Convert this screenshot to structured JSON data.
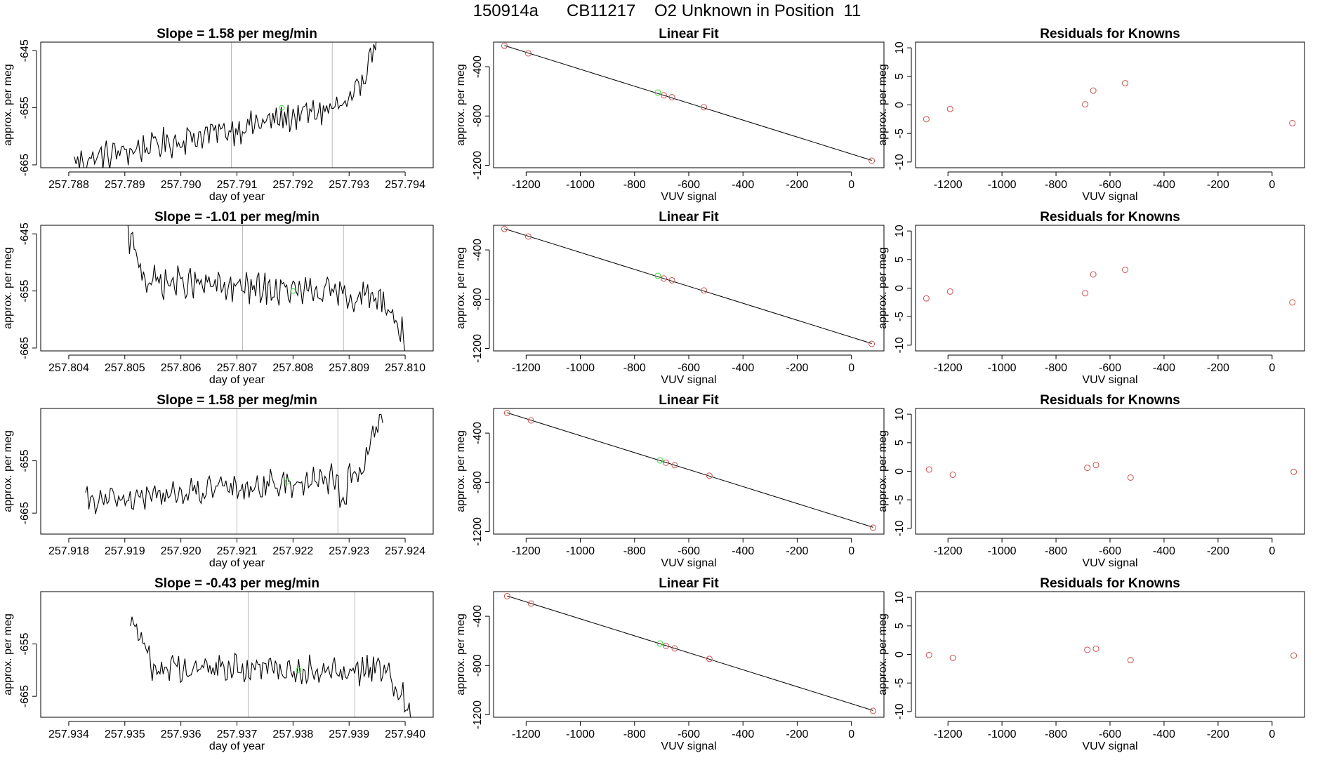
{
  "page": {
    "title": "150914a      CB11217    O2 Unknown in Position  11"
  },
  "colors": {
    "line": "#000000",
    "guide": "#bbbbbb",
    "known_point": "#cd4f4f",
    "unknown_point": "#3ddc3d",
    "frame": "#000000"
  },
  "chart_data": [
    {
      "type": "line",
      "row": 0,
      "panel": "time-series",
      "title": "Slope =  1.58  per meg/min",
      "xlabel": "day of year",
      "ylabel": "approx. per meg",
      "xlim": [
        257.7875,
        257.7945
      ],
      "ylim": [
        -665.5,
        -643.5
      ],
      "xticks": [
        "257.788",
        "257.789",
        "257.790",
        "257.791",
        "257.792",
        "257.793",
        "257.794"
      ],
      "yticks": [
        "-645",
        "-655",
        "-665"
      ],
      "guides": [
        257.7909,
        257.7927
      ],
      "trend": {
        "start": 257.7881,
        "end": 257.7935,
        "from": -664.5,
        "to": -653.5,
        "noise": 2.2,
        "tail": 11
      },
      "marker": [
        257.7918,
        -655.0
      ]
    },
    {
      "type": "scatter",
      "row": 0,
      "panel": "linear-fit",
      "title": "Linear Fit",
      "xlabel": "VUV signal",
      "ylabel": "approx. per meg",
      "xlim": [
        -1320,
        120
      ],
      "ylim": [
        -1220,
        -200
      ],
      "xticks": [
        "-1200",
        "-1000",
        "-800",
        "-600",
        "-400",
        "-200",
        "0"
      ],
      "yticks": [
        "-400",
        "-800",
        "-1200"
      ],
      "fit": [
        [
          -1280,
          -228
        ],
        [
          75,
          -1160
        ]
      ],
      "knowns": [
        [
          -1280,
          -230
        ],
        [
          -1192,
          -291
        ],
        [
          -692,
          -632
        ],
        [
          -662,
          -647
        ],
        [
          -544,
          -729
        ],
        [
          75,
          -1163
        ]
      ],
      "unknown": [
        -714,
        -610
      ]
    },
    {
      "type": "scatter",
      "row": 0,
      "panel": "residuals",
      "title": "Residuals for Knowns",
      "xlabel": "VUV signal",
      "ylabel": "approx. per meg",
      "xlim": [
        -1320,
        120
      ],
      "ylim": [
        -11,
        11
      ],
      "xticks": [
        "-1200",
        "-1000",
        "-800",
        "-600",
        "-400",
        "-200",
        "0"
      ],
      "yticks": [
        "10",
        "5",
        "0",
        "-5",
        "-10"
      ],
      "points": [
        [
          -1280,
          -2.5
        ],
        [
          -1192,
          -0.7
        ],
        [
          -692,
          0.1
        ],
        [
          -662,
          2.5
        ],
        [
          -544,
          3.8
        ],
        [
          75,
          -3.2
        ]
      ]
    },
    {
      "type": "line",
      "row": 1,
      "panel": "time-series",
      "title": "Slope =  -1.01  per meg/min",
      "xlabel": "day of year",
      "ylabel": "approx. per meg",
      "xlim": [
        257.8035,
        257.8105
      ],
      "ylim": [
        -665.5,
        -643.5
      ],
      "xticks": [
        "257.804",
        "257.805",
        "257.806",
        "257.807",
        "257.808",
        "257.809",
        "257.810"
      ],
      "yticks": [
        "-645",
        "-655",
        "-665"
      ],
      "guides": [
        257.8071,
        257.8089
      ],
      "trend": {
        "start": 257.805,
        "end": 257.81,
        "from": -653.0,
        "to": -656.5,
        "noise": 2.3,
        "head": 9,
        "tail": -7
      },
      "marker": [
        257.808,
        -655.0
      ]
    },
    {
      "type": "scatter",
      "row": 1,
      "panel": "linear-fit",
      "title": "Linear Fit",
      "xlabel": "VUV signal",
      "ylabel": "approx. per meg",
      "xlim": [
        -1320,
        120
      ],
      "ylim": [
        -1220,
        -200
      ],
      "xticks": [
        "-1200",
        "-1000",
        "-800",
        "-600",
        "-400",
        "-200",
        "0"
      ],
      "yticks": [
        "-400",
        "-800",
        "-1200"
      ],
      "fit": [
        [
          -1280,
          -228
        ],
        [
          75,
          -1160
        ]
      ],
      "knowns": [
        [
          -1280,
          -230
        ],
        [
          -1192,
          -291
        ],
        [
          -692,
          -632
        ],
        [
          -662,
          -647
        ],
        [
          -544,
          -729
        ],
        [
          75,
          -1163
        ]
      ],
      "unknown": [
        -714,
        -610
      ]
    },
    {
      "type": "scatter",
      "row": 1,
      "panel": "residuals",
      "title": "Residuals for Knowns",
      "xlabel": "VUV signal",
      "ylabel": "approx. per meg",
      "xlim": [
        -1320,
        120
      ],
      "ylim": [
        -11,
        11
      ],
      "xticks": [
        "-1200",
        "-1000",
        "-800",
        "-600",
        "-400",
        "-200",
        "0"
      ],
      "yticks": [
        "10",
        "5",
        "0",
        "-5",
        "-10"
      ],
      "points": [
        [
          -1280,
          -1.8
        ],
        [
          -1192,
          -0.6
        ],
        [
          -692,
          -0.9
        ],
        [
          -662,
          2.4
        ],
        [
          -544,
          3.2
        ],
        [
          75,
          -2.5
        ]
      ]
    },
    {
      "type": "line",
      "row": 2,
      "panel": "time-series",
      "title": "Slope =  1.58  per meg/min",
      "xlabel": "day of year",
      "ylabel": "approx. per meg",
      "xlim": [
        257.9175,
        257.9245
      ],
      "ylim": [
        -669,
        -645
      ],
      "xticks": [
        "257.918",
        "257.919",
        "257.920",
        "257.921",
        "257.922",
        "257.923",
        "257.924"
      ],
      "yticks": [
        "-655",
        "-665"
      ],
      "guides": [
        257.921,
        257.9228
      ],
      "trend": {
        "start": 257.9183,
        "end": 257.9236,
        "from": -663.0,
        "to": -657.5,
        "noise": 2.2,
        "tail": 12,
        "dip": 257.9229
      },
      "marker": [
        257.9219,
        -659.0
      ]
    },
    {
      "type": "scatter",
      "row": 2,
      "panel": "linear-fit",
      "title": "Linear Fit",
      "xlabel": "VUV signal",
      "ylabel": "approx. per meg",
      "xlim": [
        -1320,
        120
      ],
      "ylim": [
        -1220,
        -200
      ],
      "xticks": [
        "-1200",
        "-1000",
        "-800",
        "-600",
        "-400",
        "-200",
        "0"
      ],
      "yticks": [
        "-400",
        "-800",
        "-1200"
      ],
      "fit": [
        [
          -1270,
          -235
        ],
        [
          80,
          -1165
        ]
      ],
      "knowns": [
        [
          -1270,
          -237
        ],
        [
          -1182,
          -297
        ],
        [
          -684,
          -640
        ],
        [
          -652,
          -661
        ],
        [
          -524,
          -746
        ],
        [
          80,
          -1168
        ]
      ],
      "unknown": [
        -706,
        -622
      ]
    },
    {
      "type": "scatter",
      "row": 2,
      "panel": "residuals",
      "title": "Residuals for Knowns",
      "xlabel": "VUV signal",
      "ylabel": "approx. per meg",
      "xlim": [
        -1320,
        120
      ],
      "ylim": [
        -11,
        11
      ],
      "xticks": [
        "-1200",
        "-1000",
        "-800",
        "-600",
        "-400",
        "-200",
        "0"
      ],
      "yticks": [
        "10",
        "5",
        "0",
        "-5",
        "-10"
      ],
      "points": [
        [
          -1270,
          0.3
        ],
        [
          -1182,
          -0.6
        ],
        [
          -684,
          0.6
        ],
        [
          -652,
          1.1
        ],
        [
          -524,
          -1.1
        ],
        [
          80,
          -0.1
        ]
      ]
    },
    {
      "type": "line",
      "row": 3,
      "panel": "time-series",
      "title": "Slope =  -0.43  per meg/min",
      "xlabel": "day of year",
      "ylabel": "approx. per meg",
      "xlim": [
        257.9335,
        257.9405
      ],
      "ylim": [
        -669,
        -645
      ],
      "xticks": [
        "257.934",
        "257.935",
        "257.936",
        "257.937",
        "257.938",
        "257.939",
        "257.940"
      ],
      "yticks": [
        "-655",
        "-665"
      ],
      "guides": [
        257.9372,
        257.9391
      ],
      "trend": {
        "start": 257.9351,
        "end": 257.9401,
        "from": -659.5,
        "to": -660.0,
        "noise": 2.3,
        "head": 10,
        "tail": -8
      },
      "marker": [
        257.9381,
        -660.0
      ]
    },
    {
      "type": "scatter",
      "row": 3,
      "panel": "linear-fit",
      "title": "Linear Fit",
      "xlabel": "VUV signal",
      "ylabel": "approx. per meg",
      "xlim": [
        -1320,
        120
      ],
      "ylim": [
        -1220,
        -200
      ],
      "xticks": [
        "-1200",
        "-1000",
        "-800",
        "-600",
        "-400",
        "-200",
        "0"
      ],
      "yticks": [
        "-400",
        "-800",
        "-1200"
      ],
      "fit": [
        [
          -1270,
          -235
        ],
        [
          80,
          -1165
        ]
      ],
      "knowns": [
        [
          -1270,
          -237
        ],
        [
          -1182,
          -297
        ],
        [
          -684,
          -640
        ],
        [
          -652,
          -661
        ],
        [
          -524,
          -746
        ],
        [
          80,
          -1168
        ]
      ],
      "unknown": [
        -706,
        -622
      ]
    },
    {
      "type": "scatter",
      "row": 3,
      "panel": "residuals",
      "title": "Residuals for Knowns",
      "xlabel": "VUV signal",
      "ylabel": "approx. per meg",
      "xlim": [
        -1320,
        120
      ],
      "ylim": [
        -11,
        11
      ],
      "xticks": [
        "-1200",
        "-1000",
        "-800",
        "-600",
        "-400",
        "-200",
        "0"
      ],
      "yticks": [
        "10",
        "5",
        "0",
        "-5",
        "-10"
      ],
      "points": [
        [
          -1270,
          -0.1
        ],
        [
          -1182,
          -0.6
        ],
        [
          -684,
          0.8
        ],
        [
          -652,
          1.0
        ],
        [
          -524,
          -1.0
        ],
        [
          80,
          -0.2
        ]
      ]
    }
  ]
}
